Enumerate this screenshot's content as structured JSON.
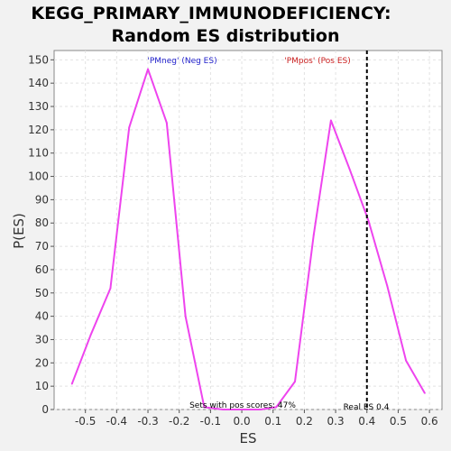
{
  "chart_data": {
    "type": "line",
    "title_lines": [
      "KEGG_PRIMARY_IMMUNODEFICIENCY:",
      "Random ES distribution"
    ],
    "xlabel": "ES",
    "ylabel": "P(ES)",
    "xlim": [
      -0.6,
      0.64
    ],
    "ylim": [
      0,
      154
    ],
    "xticks": [
      -0.5,
      -0.4,
      -0.3,
      -0.2,
      -0.1,
      0.0,
      0.1,
      0.2,
      0.3,
      0.4,
      0.5,
      0.6
    ],
    "xtick_labels": [
      "-0.5",
      "-0.4",
      "-0.3",
      "-0.2",
      "-0.1",
      "0.0",
      "0.1",
      "0.2",
      "0.3",
      "0.4",
      "0.5",
      "0.6"
    ],
    "yticks": [
      0,
      10,
      20,
      30,
      40,
      50,
      60,
      70,
      80,
      90,
      100,
      110,
      120,
      130,
      140,
      150
    ],
    "ytick_labels": [
      "0",
      "10",
      "20",
      "30",
      "40",
      "50",
      "60",
      "70",
      "80",
      "90",
      "100",
      "110",
      "120",
      "130",
      "140",
      "150"
    ],
    "grid": true,
    "series": [
      {
        "color": "#ee44ee",
        "x": [
          -0.543,
          -0.483,
          -0.42,
          -0.36,
          -0.3,
          -0.24,
          -0.18,
          -0.12,
          -0.06,
          0.0,
          0.06,
          0.11,
          0.17,
          0.23,
          0.285,
          0.345,
          0.405,
          0.465,
          0.525,
          0.585
        ],
        "y": [
          11,
          32,
          52,
          121,
          146,
          123,
          40,
          1,
          0,
          0,
          0,
          1,
          12,
          75,
          124,
          103,
          81,
          53,
          21,
          7
        ]
      }
    ],
    "vline": {
      "x": 0.4,
      "style": "dashed",
      "color": "#000000"
    },
    "annotations": {
      "neg_label": "'PMneg' (Neg ES)",
      "neg_color": "#2222cc",
      "pos_label": "'PMpos' (Pos ES)",
      "pos_color": "#cc2222",
      "sets_text": "Sets with pos scores: 47%",
      "real_es_text": "Real ES 0.4"
    }
  }
}
